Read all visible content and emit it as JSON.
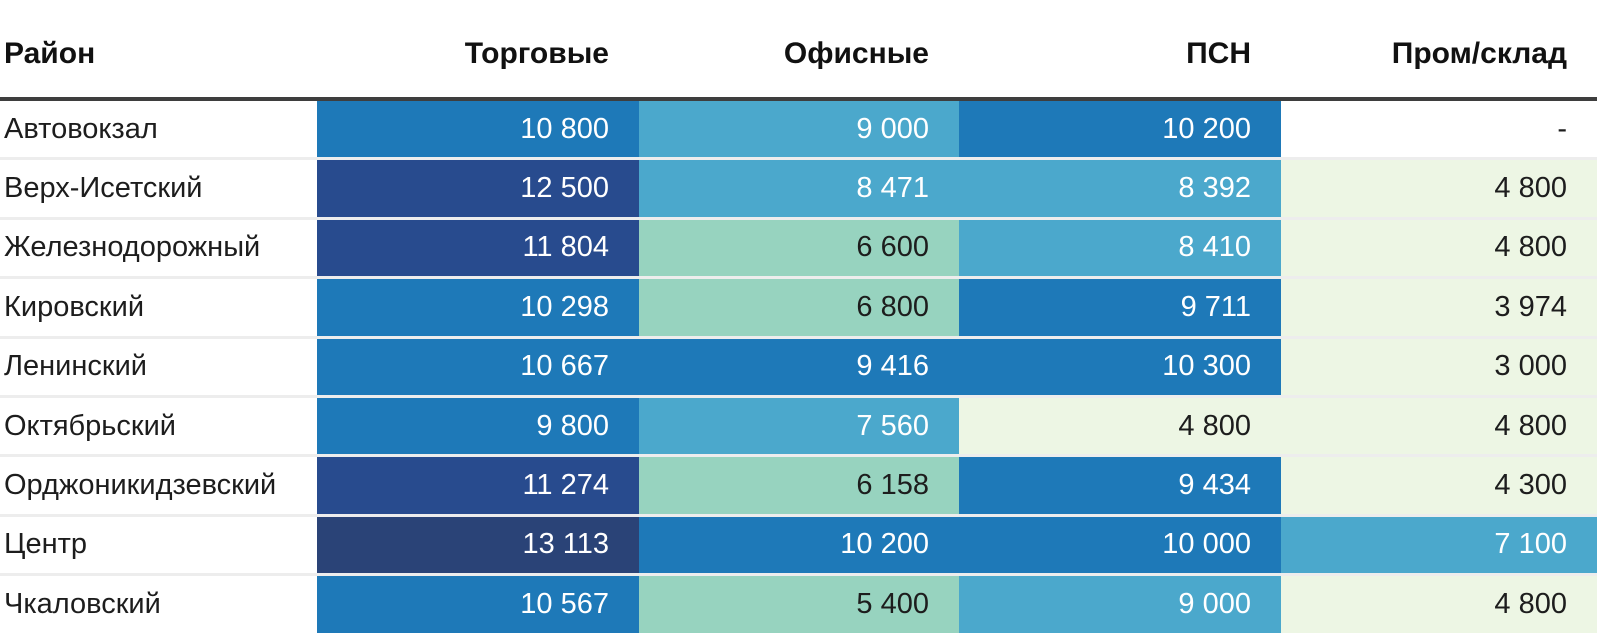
{
  "palette": {
    "navy-dark": "#2a4377",
    "navy": "#284b8e",
    "blue-mid": "#1e79b8",
    "blue-light": "#4ba8cc",
    "green-sea": "#97d3bf",
    "green-pale": "#edf6e4",
    "header-border": "#3e3e3e",
    "text-dark": "#1d1d1d",
    "text-light": "#ffffff"
  },
  "table": {
    "columns": [
      {
        "key": "district",
        "label": "Район",
        "align": "left"
      },
      {
        "key": "retail",
        "label": "Торговые",
        "align": "right"
      },
      {
        "key": "office",
        "label": "Офисные",
        "align": "right"
      },
      {
        "key": "psn",
        "label": "ПСН",
        "align": "right"
      },
      {
        "key": "warehouse",
        "label": "Пром/склад",
        "align": "right"
      }
    ],
    "rows": [
      {
        "district": "Автовокзал",
        "cells": [
          {
            "value": "10 800",
            "tone": "blue-mid"
          },
          {
            "value": "9 000",
            "tone": "blue-light"
          },
          {
            "value": "10 200",
            "tone": "blue-mid"
          },
          {
            "value": "-",
            "tone": "none"
          }
        ]
      },
      {
        "district": "Верх-Исетский",
        "cells": [
          {
            "value": "12 500",
            "tone": "navy"
          },
          {
            "value": "8 471",
            "tone": "blue-light"
          },
          {
            "value": "8 392",
            "tone": "blue-light"
          },
          {
            "value": "4 800",
            "tone": "green-pale"
          }
        ]
      },
      {
        "district": "Железнодорожный",
        "cells": [
          {
            "value": "11 804",
            "tone": "navy"
          },
          {
            "value": "6 600",
            "tone": "green-sea"
          },
          {
            "value": "8 410",
            "tone": "blue-light"
          },
          {
            "value": "4 800",
            "tone": "green-pale"
          }
        ]
      },
      {
        "district": "Кировский",
        "cells": [
          {
            "value": "10 298",
            "tone": "blue-mid"
          },
          {
            "value": "6 800",
            "tone": "green-sea"
          },
          {
            "value": "9 711",
            "tone": "blue-mid"
          },
          {
            "value": "3 974",
            "tone": "green-pale"
          }
        ]
      },
      {
        "district": "Ленинский",
        "cells": [
          {
            "value": "10 667",
            "tone": "blue-mid"
          },
          {
            "value": "9 416",
            "tone": "blue-mid"
          },
          {
            "value": "10 300",
            "tone": "blue-mid"
          },
          {
            "value": "3 000",
            "tone": "green-pale"
          }
        ]
      },
      {
        "district": "Октябрьский",
        "cells": [
          {
            "value": "9 800",
            "tone": "blue-mid"
          },
          {
            "value": "7 560",
            "tone": "blue-light"
          },
          {
            "value": "4 800",
            "tone": "green-pale"
          },
          {
            "value": "4 800",
            "tone": "green-pale"
          }
        ]
      },
      {
        "district": "Орджоникидзевский",
        "cells": [
          {
            "value": "11 274",
            "tone": "navy"
          },
          {
            "value": "6 158",
            "tone": "green-sea"
          },
          {
            "value": "9 434",
            "tone": "blue-mid"
          },
          {
            "value": "4 300",
            "tone": "green-pale"
          }
        ]
      },
      {
        "district": "Центр",
        "cells": [
          {
            "value": "13 113",
            "tone": "navy-dark"
          },
          {
            "value": "10 200",
            "tone": "blue-mid"
          },
          {
            "value": "10 000",
            "tone": "blue-mid"
          },
          {
            "value": "7 100",
            "tone": "blue-light"
          }
        ]
      },
      {
        "district": "Чкаловский",
        "cells": [
          {
            "value": "10 567",
            "tone": "blue-mid"
          },
          {
            "value": "5 400",
            "tone": "green-sea"
          },
          {
            "value": "9 000",
            "tone": "blue-light"
          },
          {
            "value": "4 800",
            "tone": "green-pale"
          }
        ]
      }
    ]
  },
  "chart_data": {
    "type": "heatmap",
    "title": "",
    "rows": [
      "Автовокзал",
      "Верх-Исетский",
      "Железнодорожный",
      "Кировский",
      "Ленинский",
      "Октябрьский",
      "Орджоникидзевский",
      "Центр",
      "Чкаловский"
    ],
    "columns": [
      "Торговые",
      "Офисные",
      "ПСН",
      "Пром/склад"
    ],
    "values": [
      [
        10800,
        9000,
        10200,
        null
      ],
      [
        12500,
        8471,
        8392,
        4800
      ],
      [
        11804,
        6600,
        8410,
        4800
      ],
      [
        10298,
        6800,
        9711,
        3974
      ],
      [
        10667,
        9416,
        10300,
        3000
      ],
      [
        9800,
        7560,
        4800,
        4800
      ],
      [
        11274,
        6158,
        9434,
        4300
      ],
      [
        13113,
        10200,
        10000,
        7100
      ],
      [
        10567,
        5400,
        9000,
        4800
      ]
    ],
    "value_format": "space as thousands separator, dash for missing",
    "color_scale": "pale green #edf6e4 (low ~3000-4800) -> sea green #97d3bf (~5400-6800) -> light blue #4ba8cc (~7100-9000) -> blue #1e79b8 (~9400-10800) -> navy #284b8e (~11274-12500) -> dark navy #2a4377 (max 13113)",
    "legend_position": "none",
    "grid": false
  }
}
